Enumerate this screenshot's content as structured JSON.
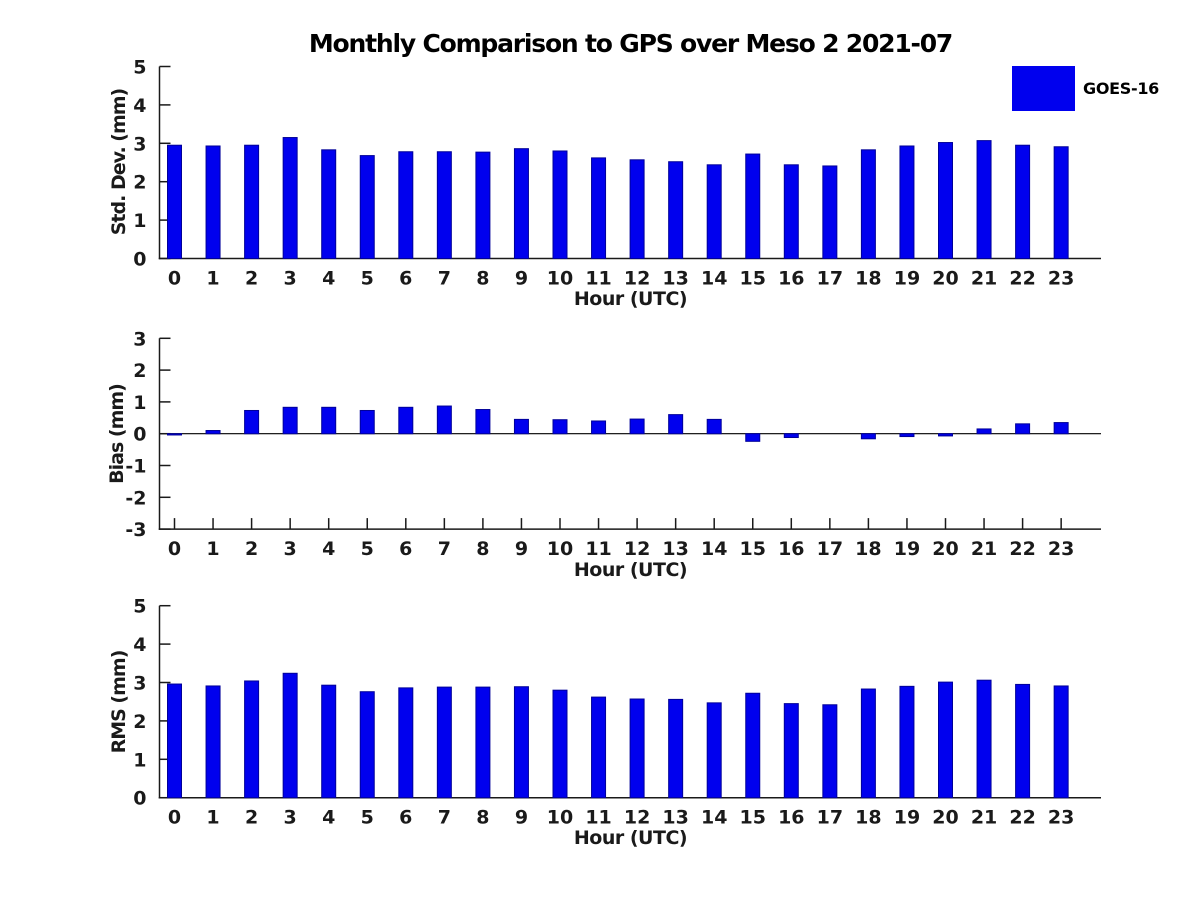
{
  "title": "Monthly Comparison to GPS over Meso 2 2021-07",
  "legend": {
    "label": "GOES-16",
    "color": "#0000ee"
  },
  "chart_data": [
    {
      "type": "bar",
      "name": "stddev",
      "series_name": "GOES-16",
      "categories": [
        "0",
        "1",
        "2",
        "3",
        "4",
        "5",
        "6",
        "7",
        "8",
        "9",
        "10",
        "11",
        "12",
        "13",
        "14",
        "15",
        "16",
        "17",
        "18",
        "19",
        "20",
        "21",
        "22",
        "23"
      ],
      "values": [
        2.95,
        2.93,
        2.95,
        3.15,
        2.83,
        2.68,
        2.78,
        2.78,
        2.77,
        2.86,
        2.8,
        2.62,
        2.57,
        2.52,
        2.44,
        2.72,
        2.44,
        2.41,
        2.83,
        2.93,
        3.02,
        3.07,
        2.95,
        2.91
      ],
      "xlabel": "Hour (UTC)",
      "ylabel": "Std. Dev. (mm)",
      "ylim": [
        0,
        5
      ],
      "yticks": [
        0,
        1,
        2,
        3,
        4,
        5
      ],
      "bar_color": "#0000ee",
      "grid": false,
      "legend_position": "upper-right-outside"
    },
    {
      "type": "bar",
      "name": "bias",
      "series_name": "GOES-16",
      "categories": [
        "0",
        "1",
        "2",
        "3",
        "4",
        "5",
        "6",
        "7",
        "8",
        "9",
        "10",
        "11",
        "12",
        "13",
        "14",
        "15",
        "16",
        "17",
        "18",
        "19",
        "20",
        "21",
        "22",
        "23"
      ],
      "values": [
        -0.04,
        0.1,
        0.73,
        0.83,
        0.83,
        0.73,
        0.83,
        0.87,
        0.76,
        0.45,
        0.44,
        0.4,
        0.46,
        0.6,
        0.45,
        -0.24,
        -0.12,
        0.0,
        -0.16,
        -0.09,
        -0.07,
        0.15,
        0.31,
        0.35
      ],
      "xlabel": "Hour (UTC)",
      "ylabel": "Bias (mm)",
      "ylim": [
        -3,
        3
      ],
      "yticks": [
        3,
        2,
        1,
        0,
        -1,
        -2,
        -3
      ],
      "bar_color": "#0000ee",
      "grid": false
    },
    {
      "type": "bar",
      "name": "rms",
      "series_name": "GOES-16",
      "categories": [
        "0",
        "1",
        "2",
        "3",
        "4",
        "5",
        "6",
        "7",
        "8",
        "9",
        "10",
        "11",
        "12",
        "13",
        "14",
        "15",
        "16",
        "17",
        "18",
        "19",
        "20",
        "21",
        "22",
        "23"
      ],
      "values": [
        2.96,
        2.91,
        3.04,
        3.24,
        2.93,
        2.76,
        2.86,
        2.88,
        2.88,
        2.89,
        2.8,
        2.62,
        2.57,
        2.56,
        2.47,
        2.72,
        2.45,
        2.42,
        2.83,
        2.9,
        3.01,
        3.06,
        2.95,
        2.91
      ],
      "xlabel": "Hour (UTC)",
      "ylabel": "RMS (mm)",
      "ylim": [
        0,
        5
      ],
      "yticks": [
        0,
        1,
        2,
        3,
        4,
        5
      ],
      "bar_color": "#0000ee",
      "grid": false
    }
  ]
}
